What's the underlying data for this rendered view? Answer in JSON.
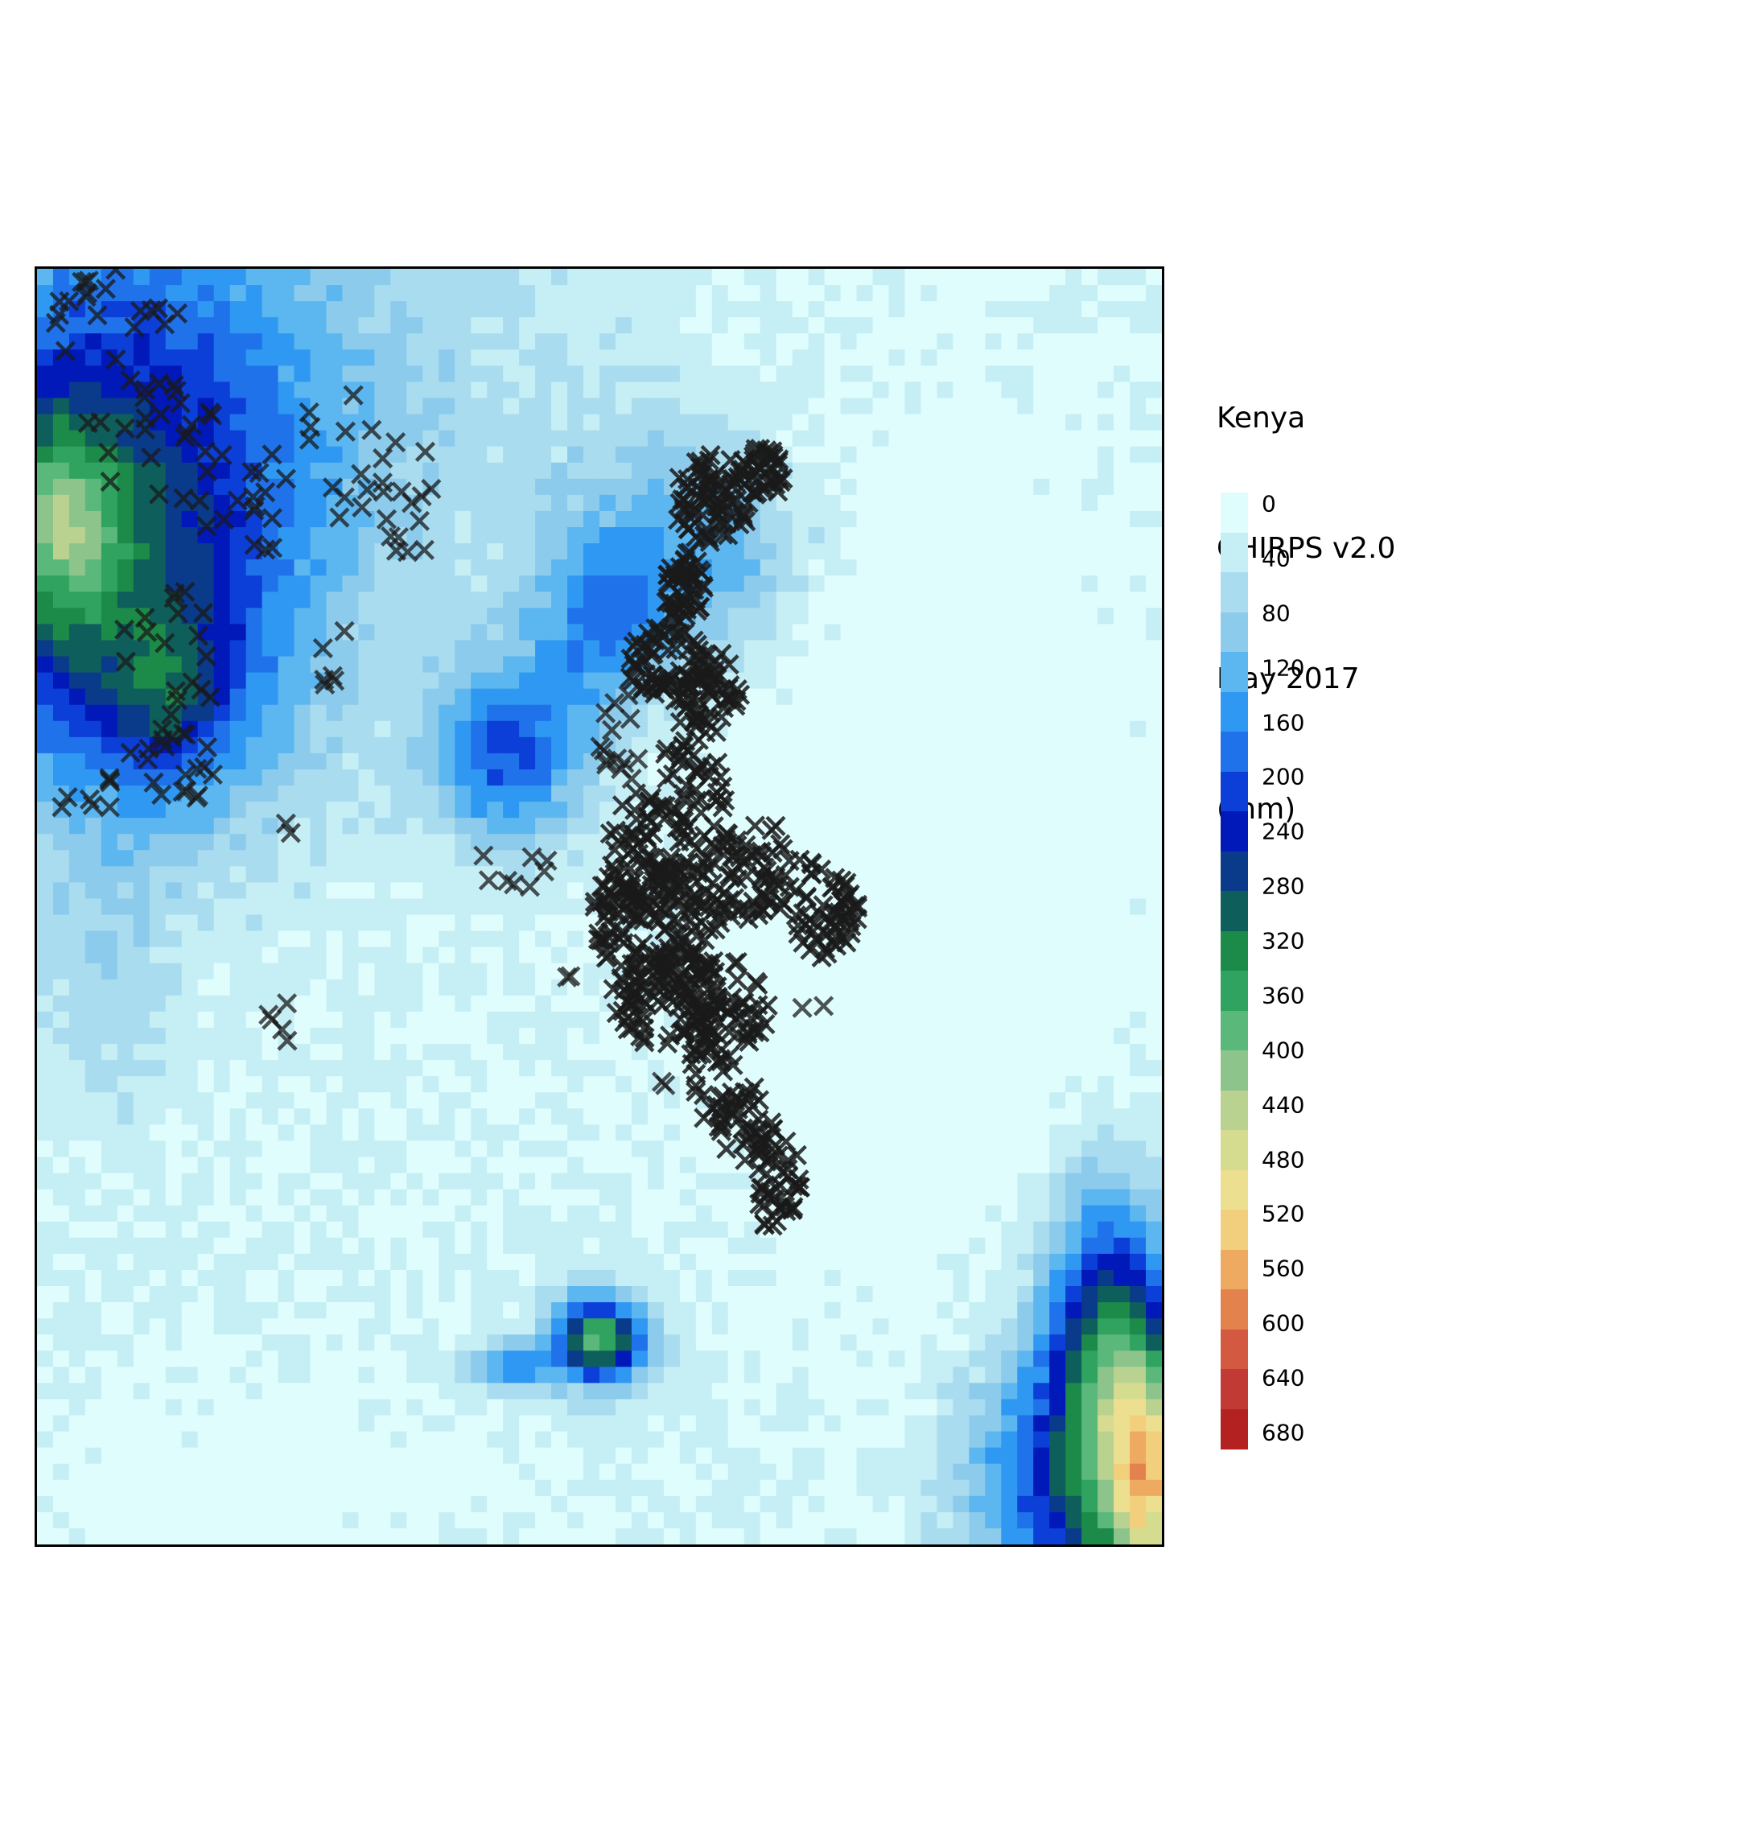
{
  "legend": {
    "title_lines": [
      "Kenya",
      "CHIRPS v2.0",
      "May 2017",
      "(mm)"
    ],
    "ticks": [
      "0",
      "40",
      "80",
      "120",
      "160",
      "200",
      "240",
      "280",
      "320",
      "360",
      "400",
      "440",
      "480",
      "520",
      "560",
      "600",
      "640",
      "680"
    ],
    "colors": [
      "#e0fdfd",
      "#c6eef5",
      "#a9dcef",
      "#8ccbec",
      "#5cb6ef",
      "#2f98f2",
      "#1f72ea",
      "#0c3ed8",
      "#0019b8",
      "#0a3a8a",
      "#0e5f5c",
      "#1c8a49",
      "#2fa35f",
      "#5ab87a",
      "#8cc48c",
      "#b9d28f",
      "#d5dc8f",
      "#ece090",
      "#f2cf7d",
      "#efaa62",
      "#e3824c",
      "#d35a40",
      "#c23a34",
      "#b32121"
    ]
  },
  "map_data": {
    "type": "raster-with-markers",
    "variable": "rainfall",
    "marker": "x",
    "marker_color": "#1a1a1a",
    "value_range": [
      0,
      680
    ]
  }
}
